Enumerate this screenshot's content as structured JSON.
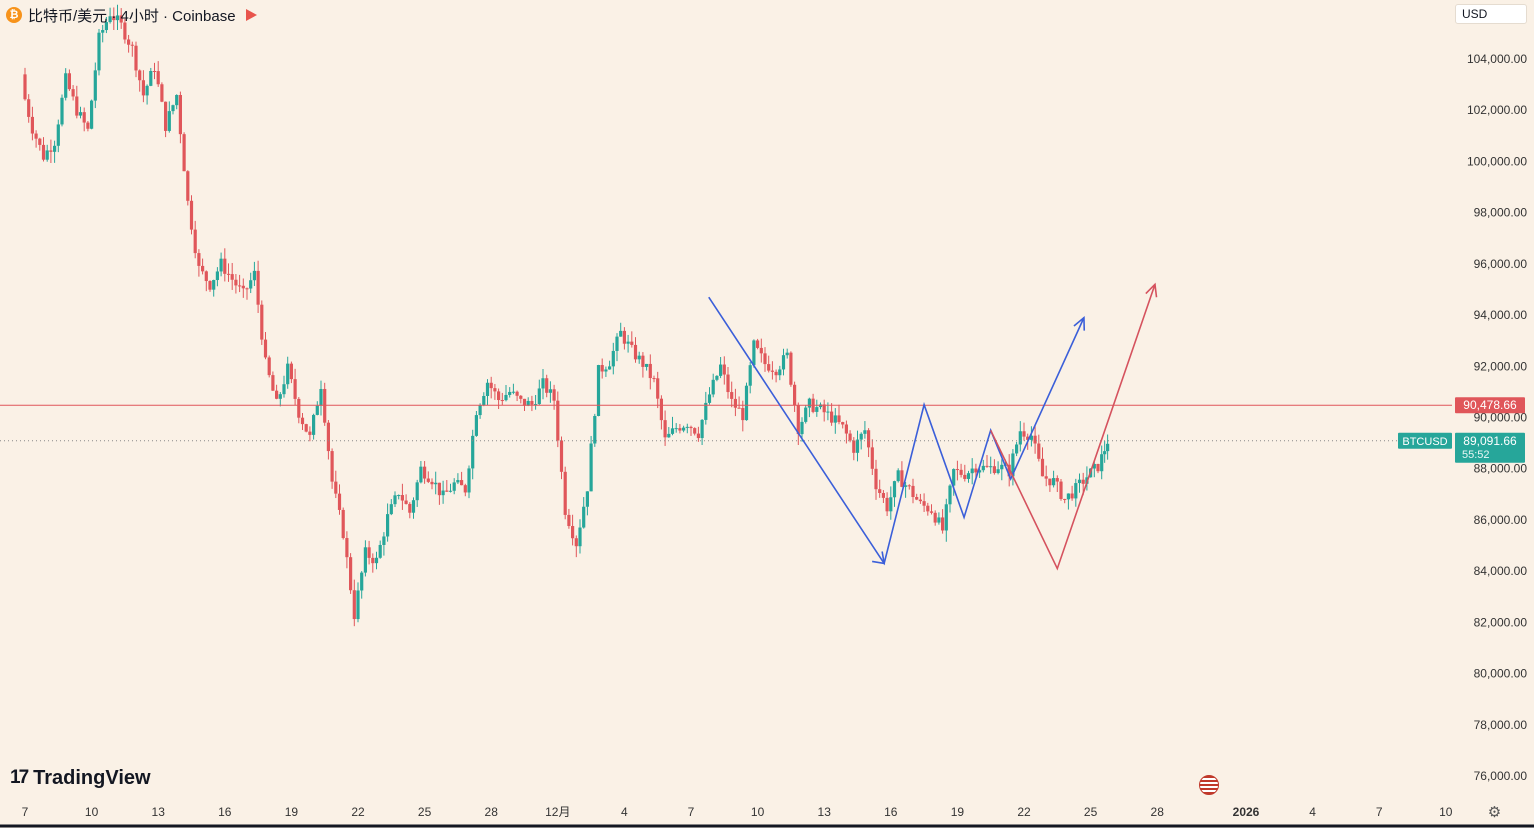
{
  "header": {
    "symbol_title": "比特币/美元 · 4小时 · Coinbase",
    "coin_glyph": "₿",
    "flag_color": "#e8544c"
  },
  "currency_selector": {
    "value": "USD"
  },
  "branding": {
    "logo_mark": "17",
    "logo_text": "TradingView"
  },
  "colors": {
    "up": "#26a69a",
    "down": "#e0565a",
    "background": "#faf1e6",
    "drawing_blue": "#3b5fd9",
    "drawing_red": "#d5525e",
    "price_line": "#e0565a"
  },
  "chart_data": {
    "type": "candlestick",
    "symbol": "BTCUSD",
    "interval": "4h",
    "exchange": "Coinbase",
    "ylim": [
      75000,
      106000
    ],
    "y_ticks": [
      104000,
      102000,
      100000,
      98000,
      96000,
      94000,
      92000,
      90000,
      88000,
      86000,
      84000,
      82000,
      80000,
      78000,
      76000
    ],
    "y_tick_labels": [
      "104,000.00",
      "102,000.00",
      "100,000.00",
      "98,000.00",
      "96,000.00",
      "94,000.00",
      "92,000.00",
      "90,000.00",
      "88,000.00",
      "86,000.00",
      "84,000.00",
      "82,000.00",
      "80,000.00",
      "78,000.00",
      "76,000.00"
    ],
    "x_labels": [
      "7",
      "10",
      "13",
      "16",
      "19",
      "22",
      "25",
      "28",
      "12月",
      "4",
      "7",
      "10",
      "13",
      "16",
      "19",
      "22",
      "25",
      "28",
      "2026",
      "4",
      "7",
      "10"
    ],
    "x_label_days": [
      0,
      3,
      6,
      9,
      12,
      15,
      18,
      21,
      24,
      27,
      30,
      33,
      36,
      39,
      42,
      45,
      48,
      51,
      55,
      58,
      61,
      64
    ],
    "x_axis_day_zero": "2025-11-07",
    "horizontal_line": {
      "price": 90478.66,
      "label": "90,478.66"
    },
    "last_price": {
      "price": 89091.66,
      "label": "89,091.66",
      "symbol": "BTCUSD",
      "countdown": "55:52"
    },
    "closes": [
      {
        "day": 0.0,
        "close": 103000
      },
      {
        "day": 0.5,
        "close": 101300
      },
      {
        "day": 1.0,
        "close": 100200
      },
      {
        "day": 1.5,
        "close": 100800
      },
      {
        "day": 2.0,
        "close": 103200
      },
      {
        "day": 2.5,
        "close": 102000
      },
      {
        "day": 3.0,
        "close": 101200
      },
      {
        "day": 3.5,
        "close": 104800
      },
      {
        "day": 4.0,
        "close": 105800
      },
      {
        "day": 4.5,
        "close": 105300
      },
      {
        "day": 5.0,
        "close": 104400
      },
      {
        "day": 5.5,
        "close": 102600
      },
      {
        "day": 6.0,
        "close": 103700
      },
      {
        "day": 6.5,
        "close": 101400
      },
      {
        "day": 7.0,
        "close": 102600
      },
      {
        "day": 7.5,
        "close": 98400
      },
      {
        "day": 8.0,
        "close": 95800
      },
      {
        "day": 8.5,
        "close": 95200
      },
      {
        "day": 9.0,
        "close": 96000
      },
      {
        "day": 9.5,
        "close": 95400
      },
      {
        "day": 10.0,
        "close": 94800
      },
      {
        "day": 10.5,
        "close": 95600
      },
      {
        "day": 11.0,
        "close": 92100
      },
      {
        "day": 11.5,
        "close": 90500
      },
      {
        "day": 12.0,
        "close": 91900
      },
      {
        "day": 12.5,
        "close": 90200
      },
      {
        "day": 13.0,
        "close": 89200
      },
      {
        "day": 13.5,
        "close": 91300
      },
      {
        "day": 14.0,
        "close": 87500
      },
      {
        "day": 14.5,
        "close": 85500
      },
      {
        "day": 15.0,
        "close": 82300
      },
      {
        "day": 15.5,
        "close": 84700
      },
      {
        "day": 16.0,
        "close": 84400
      },
      {
        "day": 16.5,
        "close": 86100
      },
      {
        "day": 17.0,
        "close": 87100
      },
      {
        "day": 17.5,
        "close": 86300
      },
      {
        "day": 18.0,
        "close": 88000
      },
      {
        "day": 18.5,
        "close": 87600
      },
      {
        "day": 19.0,
        "close": 86900
      },
      {
        "day": 19.5,
        "close": 87400
      },
      {
        "day": 20.0,
        "close": 87200
      },
      {
        "day": 20.5,
        "close": 90300
      },
      {
        "day": 21.0,
        "close": 91400
      },
      {
        "day": 21.5,
        "close": 90700
      },
      {
        "day": 22.0,
        "close": 91000
      },
      {
        "day": 22.5,
        "close": 90600
      },
      {
        "day": 23.0,
        "close": 90500
      },
      {
        "day": 23.5,
        "close": 91300
      },
      {
        "day": 24.0,
        "close": 90700
      },
      {
        "day": 24.5,
        "close": 86400
      },
      {
        "day": 25.0,
        "close": 85100
      },
      {
        "day": 25.5,
        "close": 87300
      },
      {
        "day": 26.0,
        "close": 91800
      },
      {
        "day": 26.5,
        "close": 92200
      },
      {
        "day": 27.0,
        "close": 93300
      },
      {
        "day": 27.5,
        "close": 92600
      },
      {
        "day": 28.0,
        "close": 92100
      },
      {
        "day": 28.5,
        "close": 91400
      },
      {
        "day": 29.0,
        "close": 89100
      },
      {
        "day": 29.5,
        "close": 89600
      },
      {
        "day": 30.0,
        "close": 89800
      },
      {
        "day": 30.5,
        "close": 89400
      },
      {
        "day": 31.0,
        "close": 90900
      },
      {
        "day": 31.5,
        "close": 92000
      },
      {
        "day": 32.0,
        "close": 90600
      },
      {
        "day": 32.5,
        "close": 90100
      },
      {
        "day": 33.0,
        "close": 92800
      },
      {
        "day": 33.5,
        "close": 92100
      },
      {
        "day": 34.0,
        "close": 91900
      },
      {
        "day": 34.5,
        "close": 92400
      },
      {
        "day": 35.0,
        "close": 89600
      },
      {
        "day": 35.5,
        "close": 90500
      },
      {
        "day": 36.0,
        "close": 90300
      },
      {
        "day": 36.5,
        "close": 90000
      },
      {
        "day": 37.0,
        "close": 89600
      },
      {
        "day": 37.5,
        "close": 88800
      },
      {
        "day": 38.0,
        "close": 89500
      },
      {
        "day": 38.5,
        "close": 87400
      },
      {
        "day": 39.0,
        "close": 86500
      },
      {
        "day": 39.5,
        "close": 87700
      },
      {
        "day": 40.0,
        "close": 87200
      },
      {
        "day": 40.5,
        "close": 86600
      },
      {
        "day": 41.0,
        "close": 86400
      },
      {
        "day": 41.5,
        "close": 85600
      },
      {
        "day": 42.0,
        "close": 87900
      },
      {
        "day": 42.5,
        "close": 87800
      },
      {
        "day": 43.0,
        "close": 88100
      },
      {
        "day": 43.5,
        "close": 88000
      },
      {
        "day": 44.0,
        "close": 88100
      },
      {
        "day": 44.5,
        "close": 87900
      },
      {
        "day": 45.0,
        "close": 89500
      },
      {
        "day": 45.5,
        "close": 89300
      },
      {
        "day": 46.0,
        "close": 87700
      },
      {
        "day": 46.5,
        "close": 87500
      },
      {
        "day": 47.0,
        "close": 86800
      },
      {
        "day": 47.5,
        "close": 87200
      },
      {
        "day": 48.0,
        "close": 87700
      },
      {
        "day": 48.5,
        "close": 88100
      },
      {
        "day": 48.9,
        "close": 89092
      }
    ],
    "drawings": [
      {
        "name": "blue-zigzag-path",
        "color": "#3b5fd9",
        "points": [
          [
            30.8,
            94700
          ],
          [
            38.7,
            84300
          ],
          [
            40.5,
            90500
          ],
          [
            42.3,
            86100
          ],
          [
            43.5,
            89500
          ],
          [
            44.4,
            87600
          ],
          [
            47.7,
            93900
          ]
        ],
        "arrow_end": true
      },
      {
        "name": "red-zigzag-path",
        "color": "#d5525e",
        "points": [
          [
            43.5,
            89500
          ],
          [
            46.5,
            84100
          ],
          [
            50.9,
            95200
          ]
        ],
        "arrow_end": true
      }
    ]
  }
}
